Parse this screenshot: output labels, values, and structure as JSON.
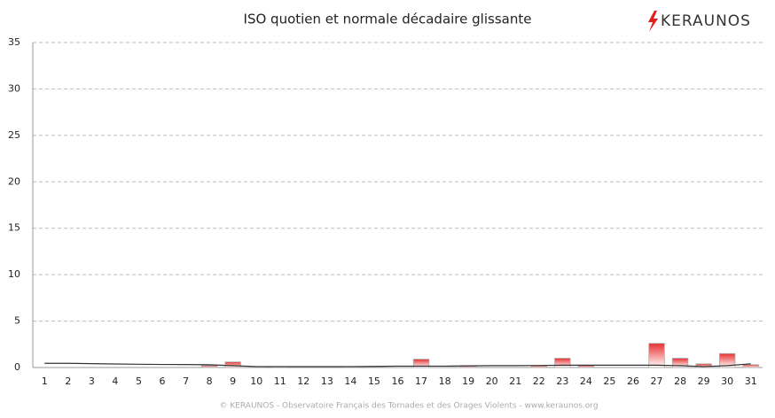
{
  "chart_data": {
    "type": "bar",
    "title": "ISO quotien et normale décadaire glissante",
    "logo": "KERAUNOS",
    "footer": "© KERAUNOS - Observatoire Français des Tornades et des Orages Violents - www.keraunos.org",
    "categories": [
      "1",
      "2",
      "3",
      "4",
      "5",
      "6",
      "7",
      "8",
      "9",
      "10",
      "11",
      "12",
      "13",
      "14",
      "15",
      "16",
      "17",
      "18",
      "19",
      "20",
      "21",
      "22",
      "23",
      "24",
      "25",
      "26",
      "27",
      "28",
      "29",
      "30",
      "31"
    ],
    "series": [
      {
        "type": "bar",
        "color": "#e83030",
        "values": [
          0,
          0,
          0,
          0,
          0,
          0,
          0,
          0.2,
          0.6,
          0.05,
          0.05,
          0,
          0,
          0.05,
          0.05,
          0,
          0.9,
          0,
          0.2,
          0,
          0,
          0.2,
          1.0,
          0.2,
          0,
          0,
          2.6,
          1.0,
          0.4,
          1.5,
          0.3
        ]
      },
      {
        "type": "line",
        "color": "#333333",
        "values": [
          0.45,
          0.45,
          0.42,
          0.38,
          0.35,
          0.33,
          0.32,
          0.3,
          0.2,
          0.1,
          0.1,
          0.1,
          0.1,
          0.1,
          0.12,
          0.15,
          0.15,
          0.15,
          0.18,
          0.2,
          0.2,
          0.22,
          0.25,
          0.25,
          0.25,
          0.25,
          0.25,
          0.2,
          0.1,
          0.2,
          0.4
        ]
      }
    ],
    "ylim": [
      0,
      35
    ],
    "yticks": [
      0,
      5,
      10,
      15,
      20,
      25,
      30,
      35
    ],
    "grid": true
  }
}
